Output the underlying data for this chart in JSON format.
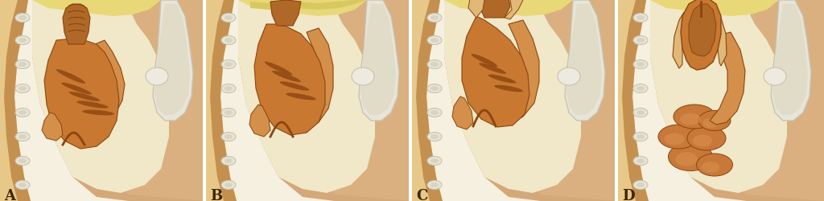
{
  "fig_width": 10.24,
  "fig_height": 2.5,
  "dpi": 100,
  "labels": [
    "A",
    "B",
    "C",
    "D"
  ],
  "label_color": "#3d2500",
  "label_fontsize": 13,
  "label_fontweight": "bold",
  "bg_light": "#f5f0e0",
  "skin_peach": "#d4a870",
  "skin_light": "#e8c888",
  "skin_dark": "#c49050",
  "body_fill": "#c8956a",
  "pelvic_bg": "#f0e8c8",
  "bone_gray": "#c8c4b0",
  "bone_white": "#e8e4d8",
  "organ_dark_brown": "#8b4510",
  "organ_mid_brown": "#b06828",
  "organ_orange": "#c87830",
  "organ_light": "#d4904a",
  "organ_tan": "#e0b878",
  "vagina_stripe": "#6b3010",
  "yellow_floor": "#e8d870",
  "outline": "#7a4010"
}
